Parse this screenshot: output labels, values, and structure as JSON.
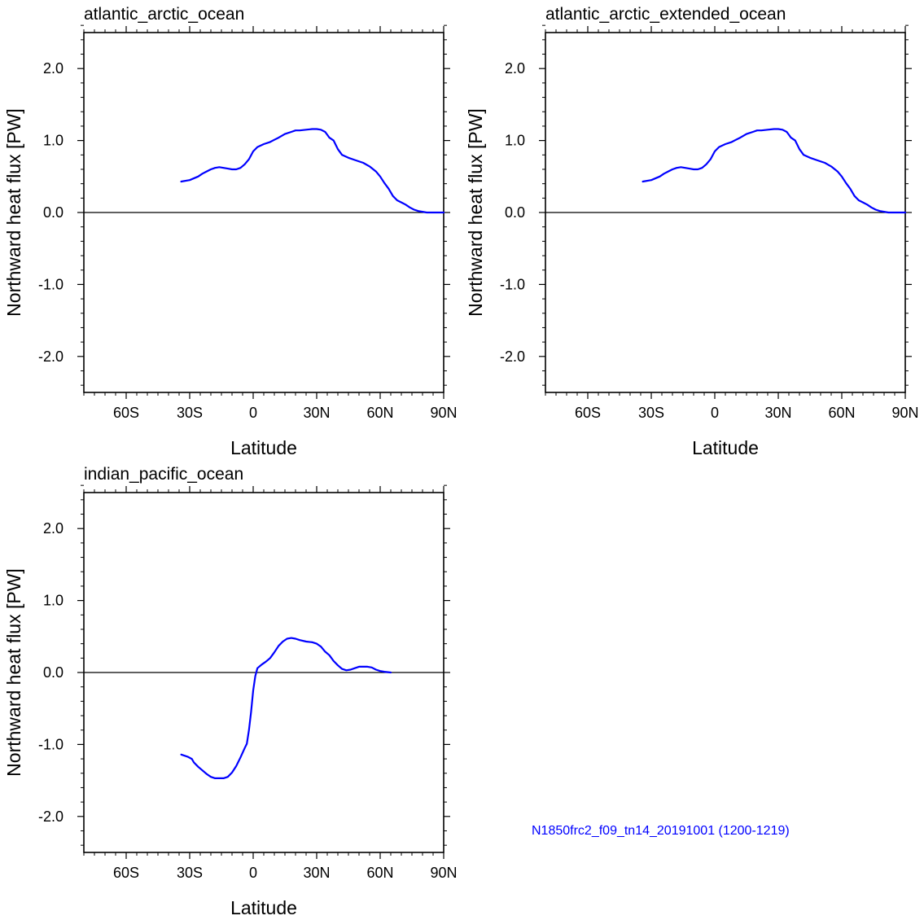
{
  "figure": {
    "footer_text": "N1850frc2_f09_tn14_20191001 (1200-1219)",
    "footer_color": "#0000ff",
    "line_color": "#0000ff",
    "zero_line_color": "#000000"
  },
  "chart_data": [
    {
      "type": "line",
      "title": "atlantic_arctic_ocean",
      "xlabel": "Latitude",
      "ylabel": "Northward heat flux [PW]",
      "xlim": [
        -80,
        90
      ],
      "ylim": [
        -2.5,
        2.5
      ],
      "xticks": [
        -60,
        -30,
        0,
        30,
        60,
        90
      ],
      "xtick_labels": [
        "60S",
        "30S",
        "0",
        "30N",
        "60N",
        "90N"
      ],
      "yticks": [
        2,
        1,
        0,
        -1,
        -2
      ],
      "ytick_labels": [
        "2.0",
        "1.0",
        "0.0",
        "-1.0",
        "-2.0"
      ],
      "reference_line": 0,
      "series": [
        {
          "name": "heat_flux",
          "x": [
            -34,
            -30,
            -26,
            -24,
            -22,
            -20,
            -18,
            -16,
            -14,
            -12,
            -10,
            -8,
            -6,
            -4,
            -2,
            0,
            2,
            5,
            8,
            10,
            12,
            15,
            18,
            20,
            22,
            25,
            28,
            30,
            32,
            34,
            35,
            36,
            38,
            40,
            42,
            45,
            48,
            52,
            55,
            58,
            60,
            62,
            64,
            66,
            68,
            70,
            72,
            74,
            76,
            78,
            80,
            82,
            85,
            90
          ],
          "values": [
            0.43,
            0.45,
            0.5,
            0.54,
            0.57,
            0.6,
            0.62,
            0.63,
            0.62,
            0.61,
            0.6,
            0.6,
            0.62,
            0.67,
            0.74,
            0.85,
            0.91,
            0.95,
            0.98,
            1.01,
            1.04,
            1.09,
            1.12,
            1.14,
            1.14,
            1.15,
            1.16,
            1.16,
            1.15,
            1.12,
            1.08,
            1.04,
            1.0,
            0.88,
            0.8,
            0.76,
            0.73,
            0.69,
            0.64,
            0.57,
            0.5,
            0.41,
            0.33,
            0.23,
            0.17,
            0.14,
            0.11,
            0.07,
            0.04,
            0.02,
            0.01,
            0.0,
            0.0,
            0.0
          ]
        }
      ]
    },
    {
      "type": "line",
      "title": "atlantic_arctic_extended_ocean",
      "xlabel": "Latitude",
      "ylabel": "Northward heat flux [PW]",
      "xlim": [
        -80,
        90
      ],
      "ylim": [
        -2.5,
        2.5
      ],
      "xticks": [
        -60,
        -30,
        0,
        30,
        60,
        90
      ],
      "xtick_labels": [
        "60S",
        "30S",
        "0",
        "30N",
        "60N",
        "90N"
      ],
      "yticks": [
        2,
        1,
        0,
        -1,
        -2
      ],
      "ytick_labels": [
        "2.0",
        "1.0",
        "0.0",
        "-1.0",
        "-2.0"
      ],
      "reference_line": 0,
      "series": [
        {
          "name": "heat_flux",
          "x": [
            -34,
            -30,
            -26,
            -24,
            -22,
            -20,
            -18,
            -16,
            -14,
            -12,
            -10,
            -8,
            -6,
            -4,
            -2,
            0,
            2,
            5,
            8,
            10,
            12,
            15,
            18,
            20,
            22,
            25,
            28,
            30,
            32,
            34,
            35,
            36,
            38,
            40,
            42,
            45,
            48,
            52,
            55,
            58,
            60,
            62,
            64,
            66,
            68,
            70,
            72,
            74,
            76,
            78,
            80,
            82,
            85,
            90
          ],
          "values": [
            0.43,
            0.45,
            0.5,
            0.54,
            0.57,
            0.6,
            0.62,
            0.63,
            0.62,
            0.61,
            0.6,
            0.6,
            0.62,
            0.67,
            0.74,
            0.85,
            0.91,
            0.95,
            0.98,
            1.01,
            1.04,
            1.09,
            1.12,
            1.14,
            1.14,
            1.15,
            1.16,
            1.16,
            1.15,
            1.12,
            1.08,
            1.04,
            1.0,
            0.88,
            0.8,
            0.76,
            0.73,
            0.69,
            0.64,
            0.57,
            0.5,
            0.41,
            0.33,
            0.23,
            0.17,
            0.14,
            0.11,
            0.07,
            0.04,
            0.02,
            0.01,
            0.0,
            0.0,
            0.0
          ]
        }
      ]
    },
    {
      "type": "line",
      "title": "indian_pacific_ocean",
      "xlabel": "Latitude",
      "ylabel": "Northward heat flux [PW]",
      "xlim": [
        -80,
        90
      ],
      "ylim": [
        -2.5,
        2.5
      ],
      "xticks": [
        -60,
        -30,
        0,
        30,
        60,
        90
      ],
      "xtick_labels": [
        "60S",
        "30S",
        "0",
        "30N",
        "60N",
        "90N"
      ],
      "yticks": [
        2,
        1,
        0,
        -1,
        -2
      ],
      "ytick_labels": [
        "2.0",
        "1.0",
        "0.0",
        "-1.0",
        "-2.0"
      ],
      "reference_line": 0,
      "series": [
        {
          "name": "heat_flux",
          "x": [
            -34,
            -31,
            -29,
            -28,
            -26,
            -24,
            -22,
            -20,
            -18,
            -16,
            -14,
            -12,
            -10,
            -8,
            -6,
            -4,
            -3,
            -2,
            -1,
            0,
            1,
            2,
            4,
            6,
            8,
            10,
            12,
            14,
            16,
            18,
            20,
            22,
            25,
            28,
            30,
            32,
            34,
            36,
            38,
            40,
            42,
            44,
            46,
            48,
            50,
            52,
            54,
            56,
            58,
            60,
            62,
            65
          ],
          "values": [
            -1.14,
            -1.17,
            -1.2,
            -1.25,
            -1.31,
            -1.36,
            -1.41,
            -1.45,
            -1.47,
            -1.47,
            -1.47,
            -1.45,
            -1.39,
            -1.3,
            -1.18,
            -1.05,
            -0.99,
            -0.8,
            -0.55,
            -0.25,
            -0.05,
            0.06,
            0.11,
            0.15,
            0.2,
            0.28,
            0.37,
            0.43,
            0.47,
            0.48,
            0.47,
            0.45,
            0.43,
            0.42,
            0.4,
            0.36,
            0.29,
            0.24,
            0.16,
            0.1,
            0.05,
            0.03,
            0.04,
            0.06,
            0.08,
            0.08,
            0.08,
            0.07,
            0.04,
            0.02,
            0.01,
            0.0
          ]
        }
      ]
    }
  ]
}
